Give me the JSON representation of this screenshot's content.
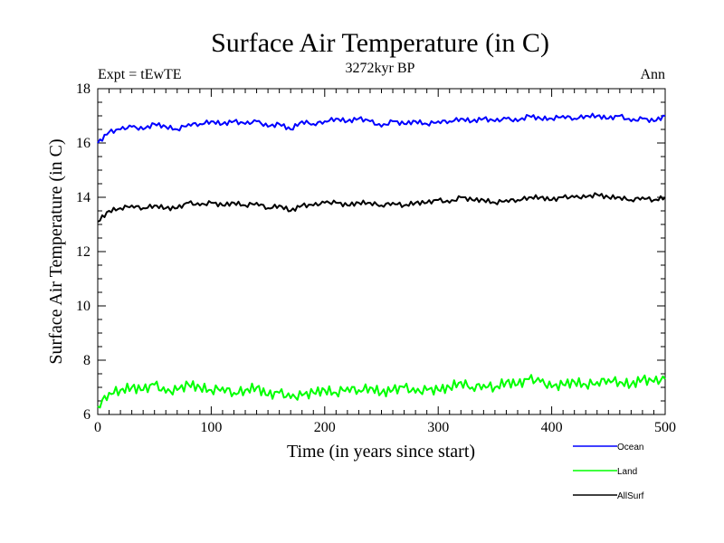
{
  "chart_data": {
    "type": "line",
    "title": "Surface Air Temperature (in C)",
    "subtitle": "3272kyr BP",
    "left_label": "Expt = tEwTE",
    "right_label": "Ann",
    "xlabel": "Time (in years since start)",
    "ylabel": "Surface Air Temperature (in C)",
    "xlim": [
      0,
      500
    ],
    "ylim": [
      6,
      18
    ],
    "xticks": [
      0,
      100,
      200,
      300,
      400,
      500
    ],
    "yticks": [
      6,
      8,
      10,
      12,
      14,
      16,
      18
    ],
    "grid": false,
    "legend_position": "bottom-right, below plot",
    "series": [
      {
        "name": "Ocean",
        "color": "#0000ff",
        "x": [
          0,
          10,
          20,
          30,
          40,
          50,
          60,
          70,
          80,
          90,
          100,
          110,
          120,
          130,
          140,
          150,
          160,
          170,
          180,
          190,
          200,
          210,
          220,
          230,
          240,
          250,
          260,
          270,
          280,
          290,
          300,
          310,
          320,
          330,
          340,
          350,
          360,
          370,
          380,
          390,
          400,
          410,
          420,
          430,
          440,
          450,
          460,
          470,
          480,
          490,
          500
        ],
        "values": [
          16.0,
          16.4,
          16.5,
          16.6,
          16.5,
          16.7,
          16.6,
          16.5,
          16.7,
          16.7,
          16.8,
          16.7,
          16.8,
          16.7,
          16.8,
          16.6,
          16.7,
          16.5,
          16.8,
          16.7,
          16.8,
          16.9,
          16.8,
          16.9,
          16.8,
          16.6,
          16.8,
          16.7,
          16.8,
          16.7,
          16.8,
          16.8,
          16.9,
          16.8,
          16.9,
          16.8,
          16.9,
          16.8,
          17.0,
          16.9,
          16.9,
          17.0,
          16.9,
          17.0,
          17.0,
          16.9,
          17.0,
          16.8,
          16.9,
          16.8,
          17.0
        ]
      },
      {
        "name": "Land",
        "color": "#00ff00",
        "x": [
          0,
          10,
          20,
          30,
          40,
          50,
          60,
          70,
          80,
          90,
          100,
          110,
          120,
          130,
          140,
          150,
          160,
          170,
          180,
          190,
          200,
          210,
          220,
          230,
          240,
          250,
          260,
          270,
          280,
          290,
          300,
          310,
          320,
          330,
          340,
          350,
          360,
          370,
          380,
          390,
          400,
          410,
          420,
          430,
          440,
          450,
          460,
          470,
          480,
          490,
          500
        ],
        "values": [
          6.3,
          6.8,
          6.9,
          7.0,
          6.9,
          7.1,
          6.8,
          6.9,
          7.1,
          7.0,
          6.9,
          7.0,
          6.8,
          6.9,
          7.0,
          6.7,
          6.8,
          6.6,
          6.7,
          6.8,
          6.9,
          6.8,
          7.0,
          6.9,
          7.0,
          6.8,
          6.9,
          7.0,
          6.8,
          6.9,
          6.9,
          7.0,
          7.2,
          7.0,
          7.1,
          7.0,
          7.2,
          7.1,
          7.3,
          7.2,
          7.0,
          7.1,
          7.2,
          7.1,
          7.2,
          7.3,
          7.2,
          7.1,
          7.3,
          7.2,
          7.3
        ]
      },
      {
        "name": "AllSurf",
        "color": "#000000",
        "x": [
          0,
          10,
          20,
          30,
          40,
          50,
          60,
          70,
          80,
          90,
          100,
          110,
          120,
          130,
          140,
          150,
          160,
          170,
          180,
          190,
          200,
          210,
          220,
          230,
          240,
          250,
          260,
          270,
          280,
          290,
          300,
          310,
          320,
          330,
          340,
          350,
          360,
          370,
          380,
          390,
          400,
          410,
          420,
          430,
          440,
          450,
          460,
          470,
          480,
          490,
          500
        ],
        "values": [
          13.1,
          13.5,
          13.6,
          13.7,
          13.6,
          13.7,
          13.6,
          13.6,
          13.8,
          13.7,
          13.8,
          13.7,
          13.8,
          13.7,
          13.8,
          13.6,
          13.7,
          13.5,
          13.7,
          13.7,
          13.8,
          13.8,
          13.7,
          13.8,
          13.8,
          13.7,
          13.8,
          13.7,
          13.8,
          13.8,
          13.9,
          13.8,
          14.0,
          13.9,
          13.9,
          13.8,
          13.9,
          13.9,
          14.0,
          14.0,
          13.9,
          14.0,
          14.0,
          14.0,
          14.1,
          14.0,
          14.0,
          13.9,
          14.0,
          13.9,
          14.0
        ]
      }
    ]
  }
}
